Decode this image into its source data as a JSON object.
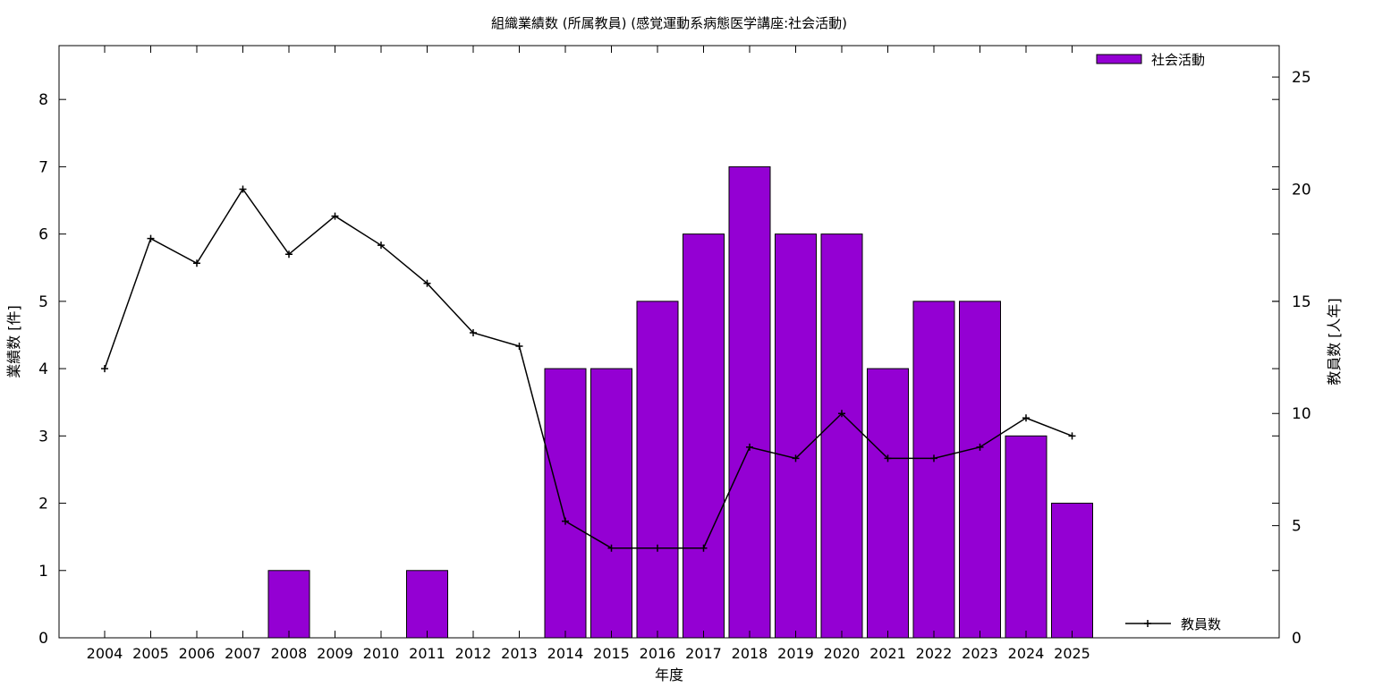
{
  "chart_data": {
    "type": "bar",
    "title": "組織業績数 (所属教員) (感覚運動系病態医学講座:社会活動)",
    "xlabel": "年度",
    "ylabel": "業績数 [件]",
    "y2label": "教員数 [人年]",
    "categories": [
      "2004",
      "2005",
      "2006",
      "2007",
      "2008",
      "2009",
      "2010",
      "2011",
      "2012",
      "2013",
      "2014",
      "2015",
      "2016",
      "2017",
      "2018",
      "2019",
      "2020",
      "2021",
      "2022",
      "2023",
      "2024",
      "2025"
    ],
    "series": [
      {
        "name": "社会活動",
        "kind": "bar",
        "axis": "left",
        "color": "#9400d3",
        "values": [
          0,
          0,
          0,
          0,
          1,
          0,
          0,
          1,
          0,
          0,
          4,
          4,
          5,
          6,
          7,
          6,
          6,
          4,
          5,
          5,
          3,
          2
        ]
      },
      {
        "name": "教員数",
        "kind": "line",
        "axis": "right",
        "color": "#000000",
        "values": [
          12.0,
          17.8,
          16.7,
          20.0,
          17.1,
          18.8,
          17.5,
          15.8,
          13.6,
          13.0,
          5.2,
          4.0,
          4.0,
          4.0,
          8.5,
          8.0,
          10.0,
          8.0,
          8.0,
          8.5,
          9.8,
          9.0
        ]
      }
    ],
    "ylim": [
      0,
      8.8
    ],
    "yticks": [
      "0",
      "1",
      "2",
      "3",
      "4",
      "5",
      "6",
      "7",
      "8"
    ],
    "y2lim": [
      0,
      26.4
    ],
    "y2ticks": [
      "0",
      "5",
      "10",
      "15",
      "20",
      "25"
    ],
    "legend": "top-right (bars), bottom-right (line)",
    "grid": false
  }
}
